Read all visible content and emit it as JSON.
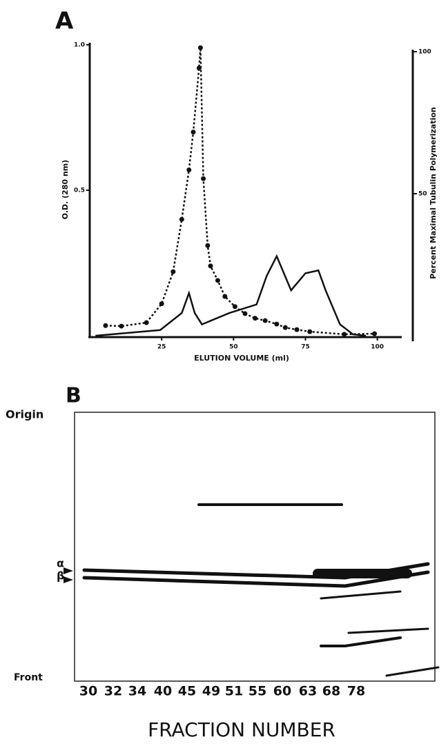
{
  "chart_data": {
    "type": "line",
    "panel": "A",
    "x_label": "ELUTION VOLUME (ml)",
    "y_label": "O.D. (280 nm)",
    "y2_label": "Percent Maximal Tubulin Polymerization",
    "xlim": [
      0,
      108
    ],
    "xticks": [
      25,
      50,
      75,
      100
    ],
    "ylim": [
      0,
      1
    ],
    "yticks": [
      {
        "value": 0.5,
        "label": "0.5"
      },
      {
        "value": 1,
        "label": "1.0"
      }
    ],
    "y2lim": [
      0,
      100
    ],
    "y2ticks": [
      50,
      100
    ],
    "series": [
      {
        "color": "#111111",
        "markers": true,
        "dashed": true,
        "x": [
          5.5,
          11,
          19.7,
          25,
          29,
          32,
          34.5,
          36,
          38,
          38.5,
          39.5,
          41,
          42,
          44.5,
          47,
          50.5,
          54,
          57.5,
          61,
          65,
          68,
          72,
          76.5,
          88.5,
          99
        ],
        "values": [
          0.035,
          0.033,
          0.045,
          0.11,
          0.22,
          0.4,
          0.57,
          0.7,
          0.92,
          0.99,
          0.54,
          0.31,
          0.24,
          0.19,
          0.135,
          0.1,
          0.076,
          0.06,
          0.052,
          0.04,
          0.028,
          0.021,
          0.014,
          0.005,
          0.007
        ]
      },
      {
        "color": "#111111",
        "markers": false,
        "dashed": false,
        "axis": "y2",
        "x": [
          2,
          24.5,
          32,
          34.5,
          36.5,
          39,
          48.5,
          58,
          61.5,
          65,
          70,
          75,
          79.5,
          82,
          87,
          91.5,
          96
        ],
        "values": [
          0,
          2,
          8,
          15,
          8,
          4,
          8,
          11,
          21,
          28,
          16,
          22,
          23,
          16,
          4,
          0.5,
          0
        ]
      }
    ]
  },
  "gel": {
    "panel": "B",
    "origin": "Origin",
    "alpha": "α",
    "beta": "β",
    "front": "Front",
    "lanes": [
      "30",
      "32",
      "34",
      "40",
      "45",
      "49",
      "51",
      "55",
      "60",
      "63",
      "68",
      "78"
    ],
    "x_label": "FRACTION NUMBER"
  }
}
